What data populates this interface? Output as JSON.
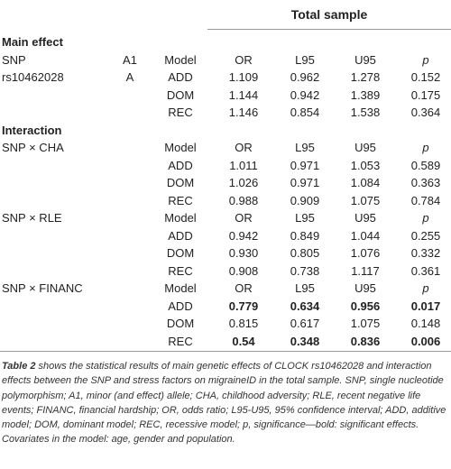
{
  "header": {
    "title": "Total sample"
  },
  "main_effect": {
    "title": "Main effect",
    "columns": [
      "SNP",
      "A1",
      "Model",
      "OR",
      "L95",
      "U95",
      "p"
    ],
    "snp": "rs10462028",
    "a1": "A",
    "rows": [
      {
        "model": "ADD",
        "values": [
          "1.109",
          "0.962",
          "1.278",
          "0.152"
        ],
        "bold": false
      },
      {
        "model": "DOM",
        "values": [
          "1.144",
          "0.942",
          "1.389",
          "0.175"
        ],
        "bold": false
      },
      {
        "model": "REC",
        "values": [
          "1.146",
          "0.854",
          "1.538",
          "0.364"
        ],
        "bold": false
      }
    ]
  },
  "interaction": {
    "title": "Interaction",
    "groups": [
      {
        "name": "SNP × CHA",
        "columns": [
          "Model",
          "OR",
          "L95",
          "U95",
          "p"
        ],
        "rows": [
          {
            "model": "ADD",
            "values": [
              "1.011",
              "0.971",
              "1.053",
              "0.589"
            ],
            "bold": false
          },
          {
            "model": "DOM",
            "values": [
              "1.026",
              "0.971",
              "1.084",
              "0.363"
            ],
            "bold": false
          },
          {
            "model": "REC",
            "values": [
              "0.988",
              "0.909",
              "1.075",
              "0.784"
            ],
            "bold": false
          }
        ]
      },
      {
        "name": "SNP × RLE",
        "columns": [
          "Model",
          "OR",
          "L95",
          "U95",
          "p"
        ],
        "rows": [
          {
            "model": "ADD",
            "values": [
              "0.942",
              "0.849",
              "1.044",
              "0.255"
            ],
            "bold": false
          },
          {
            "model": "DOM",
            "values": [
              "0.930",
              "0.805",
              "1.076",
              "0.332"
            ],
            "bold": false
          },
          {
            "model": "REC",
            "values": [
              "0.908",
              "0.738",
              "1.117",
              "0.361"
            ],
            "bold": false
          }
        ]
      },
      {
        "name": "SNP × FINANC",
        "columns": [
          "Model",
          "OR",
          "L95",
          "U95",
          "p"
        ],
        "rows": [
          {
            "model": "ADD",
            "values": [
              "0.779",
              "0.634",
              "0.956",
              "0.017"
            ],
            "bold": true
          },
          {
            "model": "DOM",
            "values": [
              "0.815",
              "0.617",
              "1.075",
              "0.148"
            ],
            "bold": false
          },
          {
            "model": "REC",
            "values": [
              "0.54",
              "0.348",
              "0.836",
              "0.006"
            ],
            "bold": true
          }
        ]
      }
    ]
  },
  "caption": {
    "label": "Table 2",
    "text": " shows the statistical results of main genetic effects of CLOCK rs10462028 and interaction effects between the SNP and stress factors on migraineID in the total sample. SNP, single nucleotide polymorphism; A1, minor (and effect) allele; CHA, childhood adversity; RLE, recent negative life events; FINANC, financial hardship; OR, odds ratio; L95-U95, 95% confidence interval; ADD, additive model; DOM, dominant model; REC, recessive model; p, significance—bold: significant effects. Covariates in the model: age, gender and population."
  }
}
